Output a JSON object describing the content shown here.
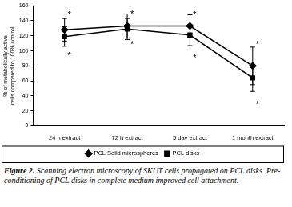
{
  "chart_data": {
    "type": "line",
    "y_label": "% of metabolically active cells compared to 100% control",
    "categories": [
      "24 h extract",
      "72 h extract",
      "5 day extract",
      "1 month extract"
    ],
    "series": [
      {
        "name": "PCL Solid microspheres",
        "color": "#000000",
        "marker": "diamond",
        "values": [
          128,
          133,
          133,
          80
        ],
        "errors": [
          15,
          16,
          15,
          25
        ]
      },
      {
        "name": "PCL disks",
        "color": "#000000",
        "marker": "square",
        "values": [
          119,
          129,
          121,
          64
        ],
        "errors": [
          13,
          14,
          14,
          18
        ]
      }
    ],
    "annotations": [
      {
        "text": "*",
        "x": "24 h extract",
        "y": 150
      },
      {
        "text": "*",
        "x": "24 h extract",
        "y": 95
      },
      {
        "text": "*",
        "x": "72 h extract",
        "y": 151
      },
      {
        "text": "*",
        "x": "72 h extract",
        "y": 110
      },
      {
        "text": "*",
        "x": "5 day extract",
        "y": 150
      },
      {
        "text": "*",
        "x": "5 day extract",
        "y": 92
      },
      {
        "text": "*",
        "x": "1 month extract",
        "y": 110
      },
      {
        "text": "*",
        "x": "1 month extract",
        "y": 30
      }
    ],
    "ylim": [
      0,
      160
    ],
    "yticks": [
      0,
      20,
      40,
      60,
      80,
      100,
      120,
      140,
      160
    ],
    "grid": false,
    "legend": "bottom",
    "caption": {
      "label": "Figure 2.",
      "text": "Scanning electron microscopy of SKUT cells propagated on PCL disks. Pre-conditioning of PCL disks in complete medium improved cell attachment."
    }
  }
}
